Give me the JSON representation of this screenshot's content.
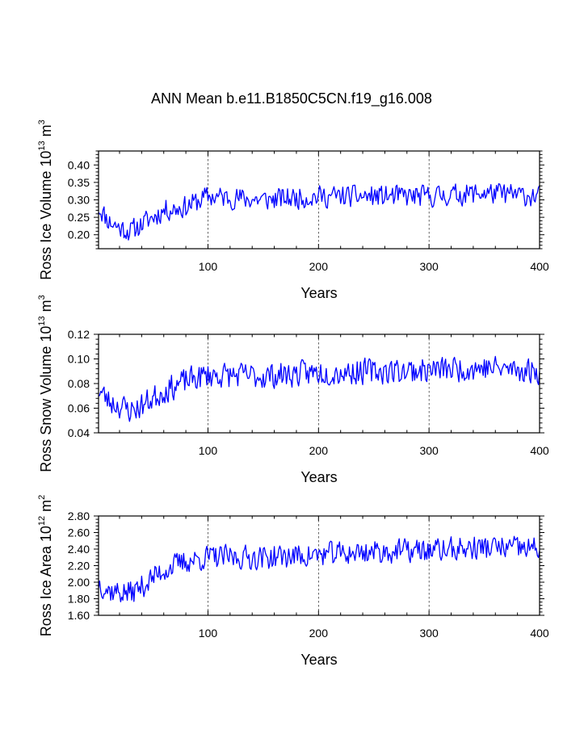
{
  "title": "ANN Mean b.e11.B1850C5CN.f19_g16.008",
  "line_color": "#0000ff",
  "chart_data": [
    {
      "type": "line",
      "ylabel": "Ross Ice Volume 10",
      "ylabel_exp": "13",
      "ylabel_unit": "m",
      "ylabel_unit_exp": "3",
      "xlabel": "Years",
      "xlim": [
        1,
        400
      ],
      "ylim": [
        0.16,
        0.44
      ],
      "xticks": [
        100,
        200,
        300,
        400
      ],
      "xtick_labels": [
        "100",
        "200",
        "300",
        "400"
      ],
      "yticks": [
        0.2,
        0.25,
        0.3,
        0.35,
        0.4
      ],
      "ytick_labels": [
        "0.20",
        "0.25",
        "0.30",
        "0.35",
        "0.40"
      ],
      "vlines": [
        100,
        200,
        300
      ],
      "anchors": [
        [
          1,
          0.28
        ],
        [
          10,
          0.24
        ],
        [
          20,
          0.22
        ],
        [
          30,
          0.21
        ],
        [
          40,
          0.23
        ],
        [
          50,
          0.25
        ],
        [
          60,
          0.27
        ],
        [
          80,
          0.28
        ],
        [
          100,
          0.31
        ],
        [
          150,
          0.3
        ],
        [
          200,
          0.31
        ],
        [
          250,
          0.31
        ],
        [
          300,
          0.31
        ],
        [
          350,
          0.32
        ],
        [
          400,
          0.31
        ]
      ],
      "noise": 0.03,
      "seed": 11
    },
    {
      "type": "line",
      "ylabel": "Ross Snow Volume 10",
      "ylabel_exp": "13",
      "ylabel_unit": "m",
      "ylabel_unit_exp": "3",
      "xlabel": "Years",
      "xlim": [
        1,
        400
      ],
      "ylim": [
        0.04,
        0.12
      ],
      "xticks": [
        100,
        200,
        300,
        400
      ],
      "xtick_labels": [
        "100",
        "200",
        "300",
        "400"
      ],
      "yticks": [
        0.04,
        0.06,
        0.08,
        0.1,
        0.12
      ],
      "ytick_labels": [
        "0.04",
        "0.06",
        "0.08",
        "0.10",
        "0.12"
      ],
      "vlines": [
        100,
        200,
        300
      ],
      "anchors": [
        [
          1,
          0.075
        ],
        [
          10,
          0.066
        ],
        [
          20,
          0.062
        ],
        [
          30,
          0.058
        ],
        [
          40,
          0.062
        ],
        [
          50,
          0.068
        ],
        [
          60,
          0.074
        ],
        [
          80,
          0.082
        ],
        [
          100,
          0.087
        ],
        [
          150,
          0.086
        ],
        [
          200,
          0.089
        ],
        [
          250,
          0.09
        ],
        [
          300,
          0.091
        ],
        [
          350,
          0.093
        ],
        [
          400,
          0.09
        ]
      ],
      "noise": 0.01,
      "seed": 23
    },
    {
      "type": "line",
      "ylabel": "Ross Ice Area 10",
      "ylabel_exp": "12",
      "ylabel_unit": "m",
      "ylabel_unit_exp": "2",
      "xlabel": "Years",
      "xlim": [
        1,
        400
      ],
      "ylim": [
        1.6,
        2.8
      ],
      "xticks": [
        100,
        200,
        300,
        400
      ],
      "xtick_labels": [
        "100",
        "200",
        "300",
        "400"
      ],
      "yticks": [
        1.6,
        1.8,
        2.0,
        2.2,
        2.4,
        2.6,
        2.8
      ],
      "ytick_labels": [
        "1.60",
        "1.80",
        "2.00",
        "2.20",
        "2.40",
        "2.60",
        "2.80"
      ],
      "vlines": [
        100,
        200,
        300
      ],
      "anchors": [
        [
          1,
          2.0
        ],
        [
          10,
          1.9
        ],
        [
          20,
          1.88
        ],
        [
          30,
          1.87
        ],
        [
          40,
          1.95
        ],
        [
          50,
          2.05
        ],
        [
          60,
          2.15
        ],
        [
          80,
          2.25
        ],
        [
          100,
          2.3
        ],
        [
          150,
          2.3
        ],
        [
          200,
          2.33
        ],
        [
          250,
          2.37
        ],
        [
          300,
          2.38
        ],
        [
          350,
          2.42
        ],
        [
          400,
          2.4
        ]
      ],
      "noise": 0.14,
      "seed": 37
    }
  ]
}
